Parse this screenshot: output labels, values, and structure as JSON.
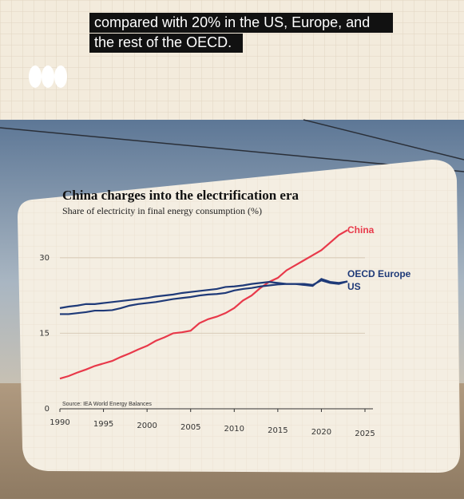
{
  "caption": [
    "compared with 20% in the US, Europe, and",
    "the rest of the OECD."
  ],
  "chart_data": {
    "type": "line",
    "title": "China charges into the electrification era",
    "subtitle": "Share of electricity in final energy consumption (%)",
    "source": "Source: IEA World Energy Balances",
    "x": [
      1990,
      1991,
      1992,
      1993,
      1994,
      1995,
      1996,
      1997,
      1998,
      1999,
      2000,
      2001,
      2002,
      2003,
      2004,
      2005,
      2006,
      2007,
      2008,
      2009,
      2010,
      2011,
      2012,
      2013,
      2014,
      2015,
      2016,
      2017,
      2018,
      2019,
      2020,
      2021,
      2022,
      2023
    ],
    "series": [
      {
        "name": "China",
        "color": "#e8394a",
        "values": [
          6,
          6.5,
          7.2,
          7.8,
          8.5,
          9,
          9.5,
          10.3,
          11,
          11.8,
          12.5,
          13.5,
          14.2,
          15,
          15.2,
          15.5,
          17,
          17.8,
          18.3,
          19,
          20,
          21.5,
          22.5,
          24,
          25.2,
          26,
          27.5,
          28.5,
          29.5,
          30.5,
          31.5,
          33,
          34.5,
          35.5
        ]
      },
      {
        "name": "OECD Europe",
        "color": "#1f3a78",
        "values": [
          20,
          20.3,
          20.5,
          20.8,
          20.8,
          21,
          21.2,
          21.4,
          21.6,
          21.8,
          22,
          22.3,
          22.5,
          22.7,
          23,
          23.2,
          23.4,
          23.6,
          23.8,
          24.2,
          24.3,
          24.5,
          24.8,
          25,
          25.2,
          25,
          24.8,
          24.8,
          24.8,
          24.6,
          25.5,
          25,
          24.8,
          25.3
        ]
      },
      {
        "name": "US",
        "color": "#1f3a78",
        "values": [
          18.8,
          18.8,
          19,
          19.2,
          19.5,
          19.5,
          19.6,
          20,
          20.5,
          20.8,
          21,
          21.2,
          21.5,
          21.8,
          22,
          22.2,
          22.5,
          22.7,
          22.8,
          23,
          23.5,
          23.8,
          24,
          24.3,
          24.5,
          24.7,
          24.8,
          24.8,
          24.6,
          24.4,
          25.8,
          25.2,
          25,
          25.3
        ]
      }
    ],
    "xlim": [
      1990,
      2025
    ],
    "xticks": [
      1990,
      1995,
      2000,
      2005,
      2010,
      2015,
      2020,
      2025
    ],
    "ylim": [
      0,
      36
    ],
    "yticks": [
      0,
      15,
      30
    ],
    "grid": true
  }
}
